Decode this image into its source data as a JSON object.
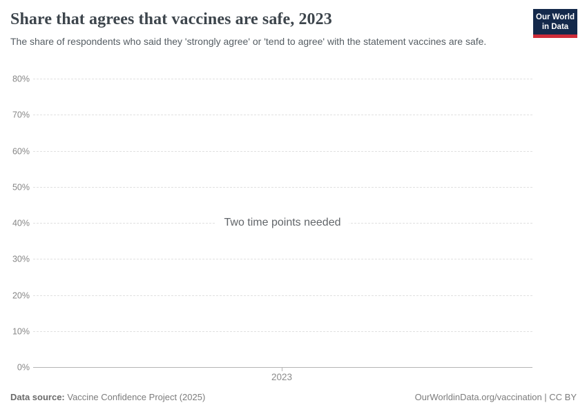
{
  "header": {
    "title": "Share that agrees that vaccines are safe, 2023",
    "subtitle": "The share of respondents who said they 'strongly agree' or 'tend to agree' with the statement vaccines are safe.",
    "logo": {
      "line1": "Our World",
      "line2": "in Data",
      "bg_color": "#14294b",
      "accent_color": "#cf2c39"
    }
  },
  "chart_data": {
    "type": "line",
    "title": "Share that agrees that vaccines are safe, 2023",
    "empty_message": "Two time points needed",
    "series": [],
    "x_ticks": [
      "2023"
    ],
    "y_ticks": [
      "80%",
      "70%",
      "60%",
      "50%",
      "40%",
      "30%",
      "20%",
      "10%",
      "0%"
    ],
    "ylim": [
      0,
      80
    ],
    "xlabel": "",
    "ylabel": "",
    "grid": true,
    "gridline_style": "dashed",
    "legend": "none"
  },
  "footer": {
    "data_source_label": "Data source:",
    "data_source_value": "Vaccine Confidence Project (2025)",
    "attribution": "OurWorldinData.org/vaccination | CC BY"
  }
}
